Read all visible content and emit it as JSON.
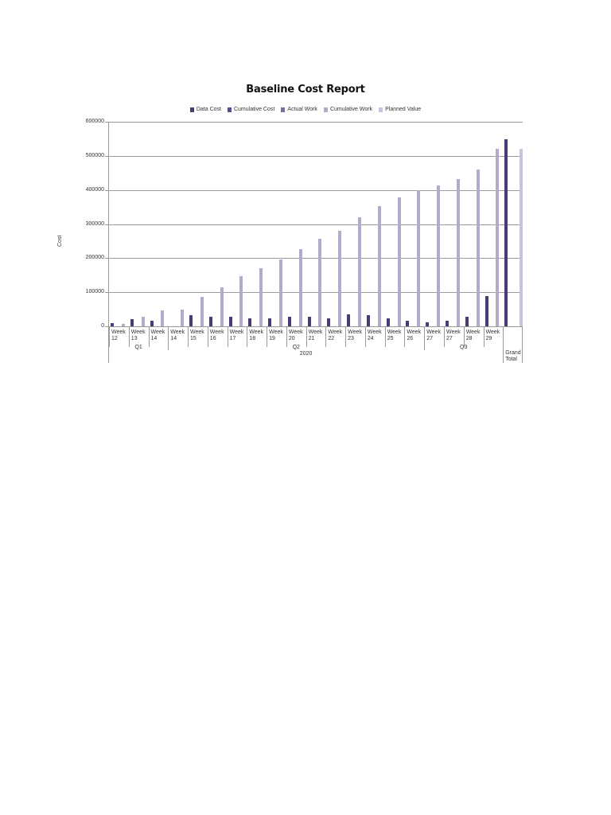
{
  "chart_data": {
    "type": "bar",
    "title": "Baseline Cost Report",
    "xlabel": "",
    "ylabel": "Cost",
    "ylim": [
      0,
      600000
    ],
    "yticks": [
      "600000",
      "500000",
      "400000",
      "300000",
      "200000",
      "100000",
      "0"
    ],
    "grid": true,
    "legend_position": "top",
    "legend": [
      "Data Cost",
      "Cumulative Cost",
      "Actual Work",
      "Cumulative Work",
      "Planned Value"
    ],
    "colors": {
      "Data Cost": "#4b3a73",
      "Cumulative Cost": "#5e4a8c",
      "Actual Work": "#7a69a6",
      "Cumulative Work": "#b3abcb",
      "Planned Value": "#c9c4dc"
    },
    "categories": [
      "Week 12",
      "Week 13",
      "Week 14",
      "Week 14",
      "Week 15",
      "Week 16",
      "Week 17",
      "Week 18",
      "Week 19",
      "Week 20",
      "Week 21",
      "Week 22",
      "Week 23",
      "Week 24",
      "Week 25",
      "Week 26",
      "Week 27",
      "Week 27",
      "Week 28",
      "Week 29",
      "Grand Total"
    ],
    "category_groups": {
      "quarters": [
        {
          "label": "Q1",
          "span": [
            0,
            2
          ]
        },
        {
          "label": "Q2",
          "span": [
            3,
            15
          ]
        },
        {
          "label": "Q3",
          "span": [
            16,
            19
          ]
        }
      ],
      "years": [
        {
          "label": "2020",
          "span": [
            0,
            19
          ]
        }
      ]
    },
    "series": [
      {
        "name": "Data Cost",
        "values": [
          9000,
          21000,
          16000,
          1000,
          33000,
          28000,
          28000,
          23000,
          23000,
          28000,
          28000,
          23000,
          35000,
          33000,
          23000,
          16000,
          11000,
          16000,
          28000,
          89000,
          549000
        ]
      },
      {
        "name": "Cumulative Cost",
        "values": [
          0,
          0,
          0,
          0,
          0,
          0,
          0,
          0,
          0,
          0,
          0,
          0,
          0,
          0,
          0,
          0,
          0,
          0,
          0,
          0,
          0
        ]
      },
      {
        "name": "Actual Work",
        "values": [
          0,
          0,
          0,
          0,
          0,
          0,
          0,
          0,
          0,
          0,
          0,
          0,
          0,
          0,
          0,
          0,
          0,
          0,
          0,
          0,
          0
        ]
      },
      {
        "name": "Cumulative Work",
        "values": [
          8000,
          29000,
          47000,
          49000,
          87000,
          115000,
          147000,
          171000,
          196000,
          226000,
          256000,
          280000,
          320000,
          352000,
          378000,
          400000,
          413000,
          431000,
          460000,
          521000,
          0
        ]
      },
      {
        "name": "Planned Value",
        "values": [
          0,
          0,
          0,
          0,
          0,
          0,
          0,
          0,
          0,
          0,
          0,
          0,
          0,
          0,
          0,
          0,
          0,
          0,
          0,
          0,
          521000
        ]
      }
    ]
  }
}
